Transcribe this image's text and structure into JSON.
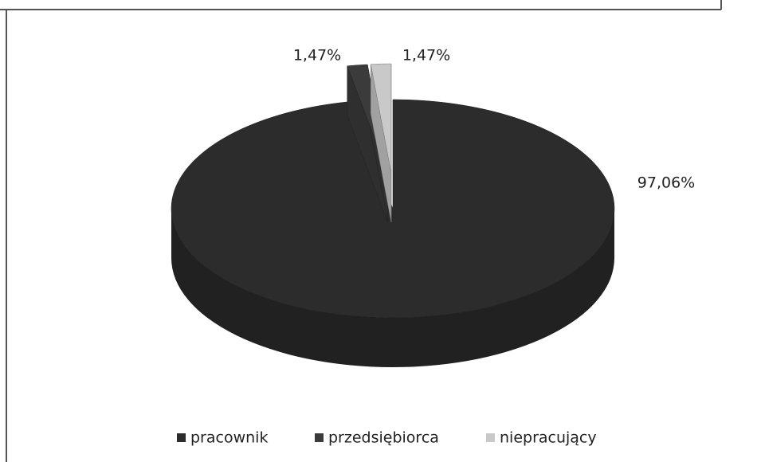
{
  "chart_data": {
    "type": "pie",
    "categories": [
      "pracownik",
      "przedsiębiorca",
      "niepracujący"
    ],
    "values": [
      97.06,
      1.47,
      1.47
    ],
    "value_labels": [
      "97,06%",
      "1,47%",
      "1,47%"
    ],
    "colors": [
      "#2c2c2c",
      "#3b3b3b",
      "#c9c9c9"
    ],
    "legend": "bottom"
  }
}
